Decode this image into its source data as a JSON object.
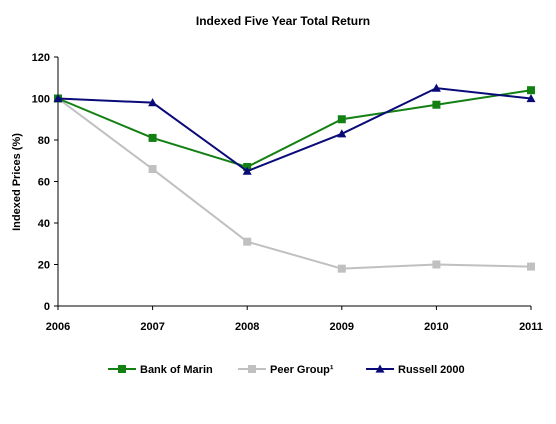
{
  "chart_data": {
    "type": "line",
    "title": "Indexed Five Year Total Return",
    "xlabel": "",
    "ylabel": "Indexed Prices (%)",
    "x": [
      "2006",
      "2007",
      "2008",
      "2009",
      "2010",
      "2011"
    ],
    "ylim": [
      0,
      120
    ],
    "yticks": [
      "0",
      "20",
      "40",
      "60",
      "80",
      "100",
      "120"
    ],
    "grid": false,
    "legend_position": "bottom",
    "series": [
      {
        "name": "Bank of Marin",
        "values": [
          100,
          81,
          67,
          90,
          97,
          104
        ],
        "color": "#138013",
        "marker": "square"
      },
      {
        "name": "Peer Group¹",
        "values": [
          100,
          66,
          31,
          18,
          20,
          19
        ],
        "color": "#c0c0c0",
        "marker": "square"
      },
      {
        "name": "Russell 2000",
        "values": [
          100,
          98,
          65,
          83,
          105,
          100
        ],
        "color": "#0a0a78",
        "marker": "triangle"
      }
    ]
  }
}
